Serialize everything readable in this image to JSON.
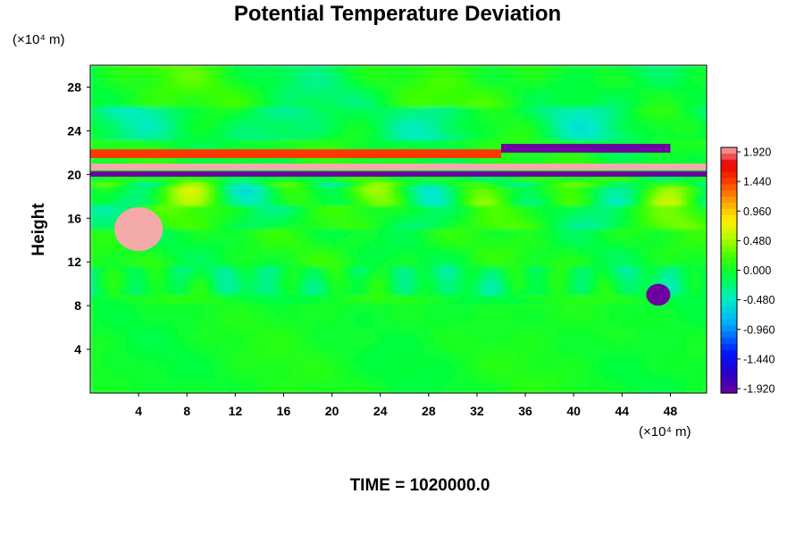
{
  "chart_data": {
    "type": "heatmap",
    "title": "Potential Temperature Deviation",
    "xlabel": "",
    "ylabel": "Height",
    "x_unit": "(×10⁴ m)",
    "y_unit": "(×10⁴ m)",
    "xlim": [
      0,
      51
    ],
    "ylim": [
      0,
      30
    ],
    "x_ticks": [
      "4",
      "8",
      "12",
      "16",
      "20",
      "24",
      "28",
      "32",
      "36",
      "40",
      "44",
      "48"
    ],
    "y_ticks": [
      "4",
      "8",
      "12",
      "16",
      "20",
      "24",
      "28"
    ],
    "colorbar": {
      "min": -1.92,
      "max": 1.92,
      "labels": [
        "1.920",
        "1.440",
        "0.960",
        "0.480",
        "0.000",
        "-0.480",
        "-0.960",
        "-1.440",
        "-1.920"
      ]
    },
    "features": [
      {
        "kind": "band",
        "x": [
          0,
          51
        ],
        "y": [
          20.4,
          21.0
        ],
        "value": 1.92
      },
      {
        "kind": "band",
        "x": [
          0,
          51
        ],
        "y": [
          19.8,
          20.3
        ],
        "value": -1.92
      },
      {
        "kind": "band",
        "x": [
          0,
          34
        ],
        "y": [
          21.5,
          22.3
        ],
        "value": 1.4
      },
      {
        "kind": "band",
        "x": [
          34,
          48
        ],
        "y": [
          22.0,
          22.8
        ],
        "value": -1.92
      },
      {
        "kind": "blob",
        "x": [
          2,
          6
        ],
        "y": [
          13,
          17
        ],
        "value": 1.92
      },
      {
        "kind": "blob",
        "x": [
          46,
          48
        ],
        "y": [
          8,
          10
        ],
        "value": -1.92
      }
    ],
    "annotation": "TIME = 1020000.0",
    "grid": false
  }
}
